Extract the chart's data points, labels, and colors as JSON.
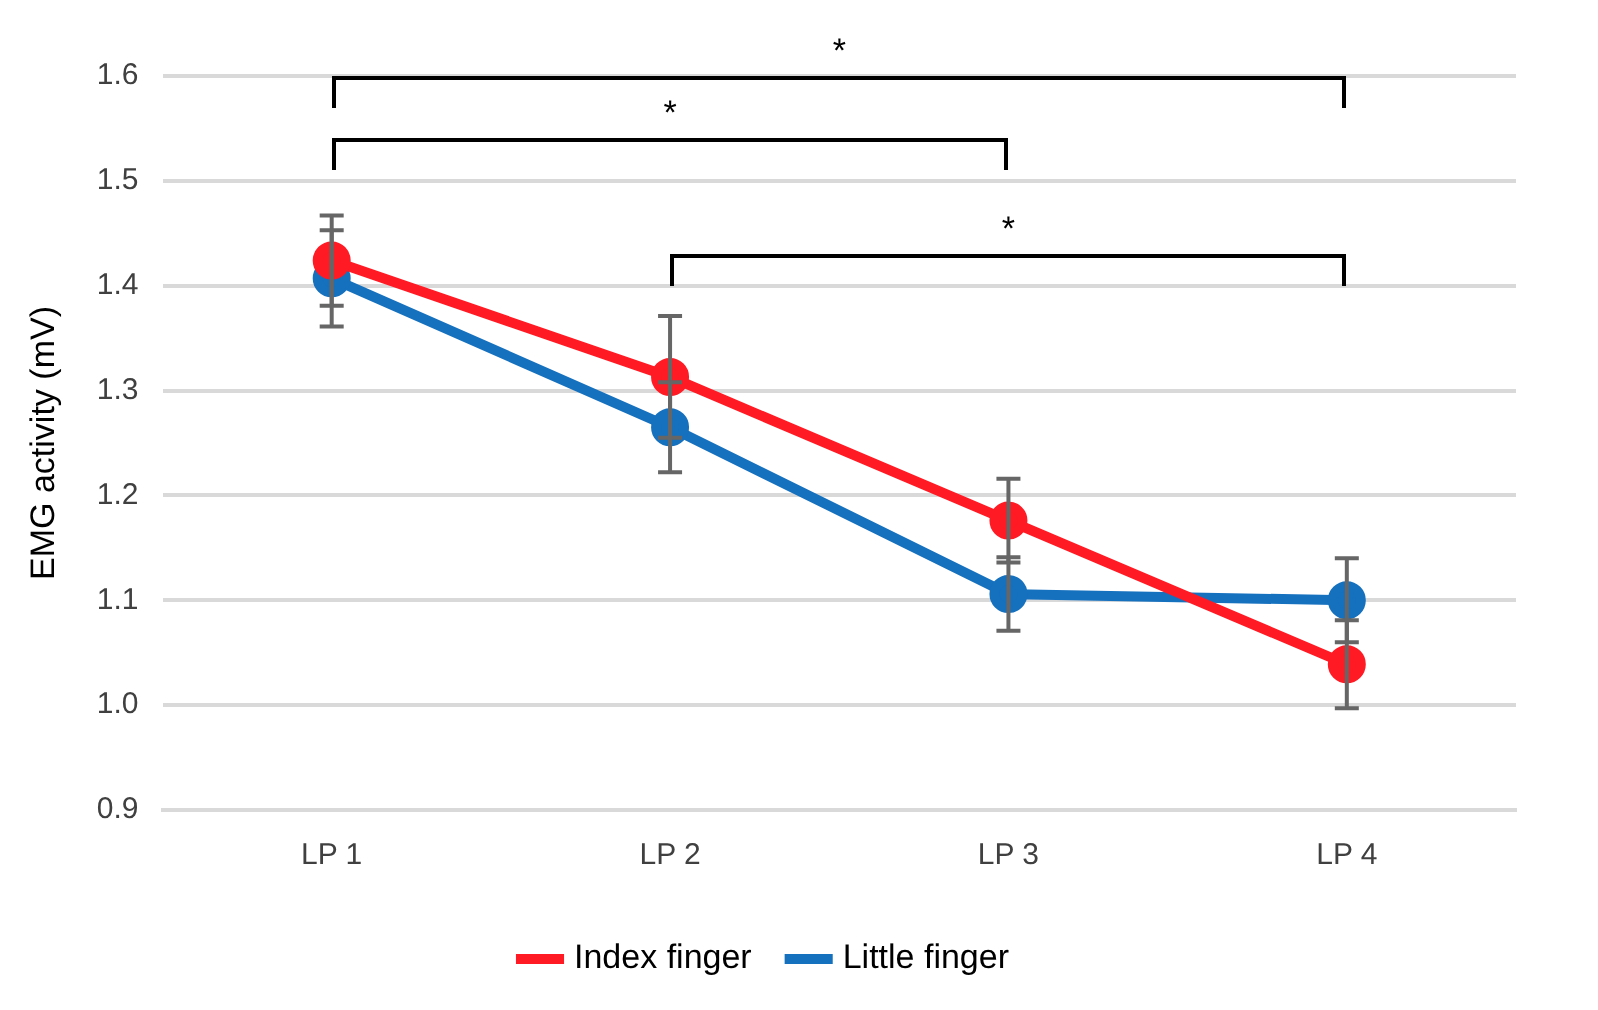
{
  "chart_data": {
    "type": "line",
    "ylabel": "EMG activity (mV)",
    "categories": [
      "LP 1",
      "LP 2",
      "LP 3",
      "LP 4"
    ],
    "series": [
      {
        "name": "Index finger",
        "color": "#ff1a24",
        "values": [
          1.424,
          1.313,
          1.176,
          1.039
        ],
        "errors": [
          0.043,
          0.058,
          0.04,
          0.042
        ]
      },
      {
        "name": "Little finger",
        "color": "#1570be",
        "values": [
          1.407,
          1.265,
          1.106,
          1.1
        ],
        "errors": [
          0.046,
          0.043,
          0.035,
          0.04
        ]
      }
    ],
    "ylim": [
      0.9,
      1.6
    ],
    "yticks": [
      {
        "value": 0.9,
        "label": "0.9"
      },
      {
        "value": 1.0,
        "label": "1.0"
      },
      {
        "value": 1.1,
        "label": "1.1"
      },
      {
        "value": 1.2,
        "label": "1.2"
      },
      {
        "value": 1.3,
        "label": "1.3"
      },
      {
        "value": 1.4,
        "label": "1.4"
      },
      {
        "value": 1.5,
        "label": "1.5"
      },
      {
        "value": 1.6,
        "label": "1.6"
      }
    ],
    "grid": "y",
    "legend": "bottom",
    "marker": "circle",
    "line_style": "solid",
    "annotations": [
      "*",
      "*",
      "*"
    ]
  }
}
